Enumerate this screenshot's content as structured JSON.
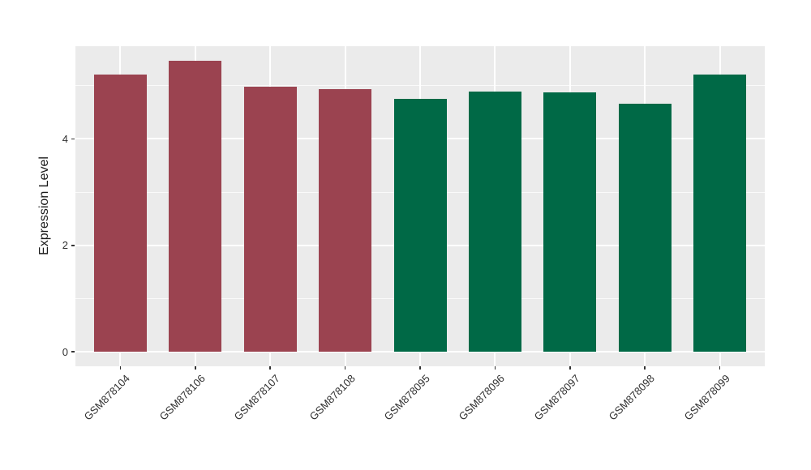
{
  "chart_data": {
    "type": "bar",
    "title": "",
    "xlabel": "",
    "ylabel": "Expression Level",
    "categories": [
      "GSM878104",
      "GSM878106",
      "GSM878107",
      "GSM878108",
      "GSM878095",
      "GSM878096",
      "GSM878097",
      "GSM878098",
      "GSM878099"
    ],
    "values": [
      5.21,
      5.47,
      4.98,
      4.93,
      4.76,
      4.89,
      4.87,
      4.66,
      5.21
    ],
    "bar_colors": [
      "#9B4350",
      "#9B4350",
      "#9B4350",
      "#9B4350",
      "#006946",
      "#006946",
      "#006946",
      "#006946",
      "#006946"
    ],
    "group_colors": {
      "red_group": "#9B4350",
      "green_group": "#006946"
    },
    "yticks": [
      0,
      2,
      4
    ],
    "ytick_labels": [
      "0",
      "2",
      "4"
    ],
    "y_minor_ticks": [
      1,
      3,
      5
    ],
    "ylim": [
      0,
      5.47
    ],
    "grid": true,
    "legend_position": "none",
    "panel_background": "#EBEBEB",
    "gridline_color": "#FFFFFF"
  }
}
